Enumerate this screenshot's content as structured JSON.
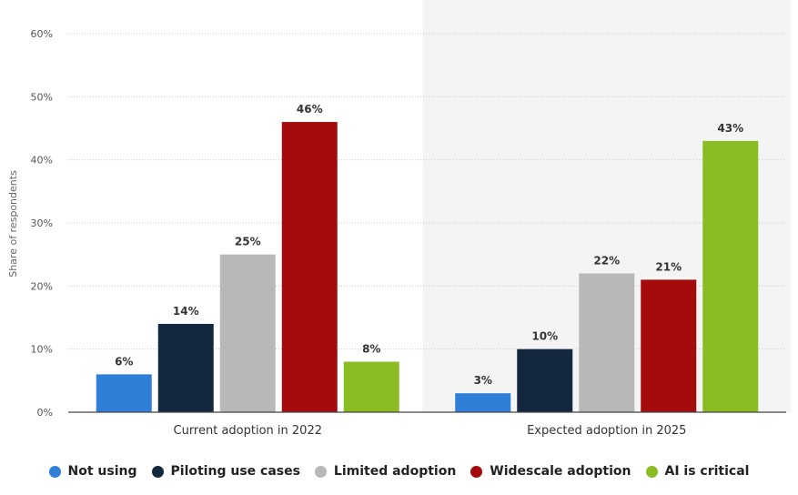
{
  "chart_data": {
    "type": "bar",
    "title": "",
    "xlabel": "",
    "ylabel": "Share of respondents",
    "ylim": [
      0,
      60
    ],
    "yticks": [
      "0%",
      "10%",
      "20%",
      "30%",
      "40%",
      "50%",
      "60%"
    ],
    "categories": [
      "Current adoption in 2022",
      "Expected adoption in 2025"
    ],
    "series": [
      {
        "name": "Not using",
        "color": "#2f7ed8",
        "values": [
          6,
          3
        ],
        "labels": [
          "6%",
          "3%"
        ]
      },
      {
        "name": "Piloting use cases",
        "color": "#13283f",
        "values": [
          14,
          10
        ],
        "labels": [
          "14%",
          "10%"
        ]
      },
      {
        "name": "Limited adoption",
        "color": "#b8b8b8",
        "values": [
          25,
          22
        ],
        "labels": [
          "25%",
          "22%"
        ]
      },
      {
        "name": "Widescale adoption",
        "color": "#a40b0c",
        "values": [
          46,
          21
        ],
        "labels": [
          "46%",
          "21%"
        ]
      },
      {
        "name": "AI is critical",
        "color": "#8cbc24",
        "values": [
          8,
          43
        ],
        "labels": [
          "8%",
          "43%"
        ]
      }
    ],
    "highlighted_category": "Expected adoption in 2025",
    "grid": true,
    "legend_position": "bottom"
  }
}
